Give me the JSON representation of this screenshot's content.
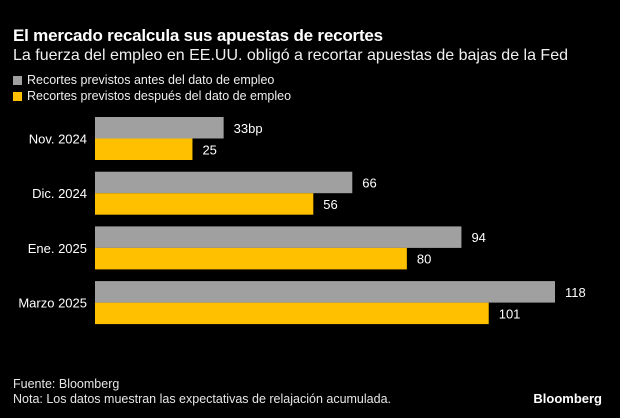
{
  "chart_data": {
    "type": "bar",
    "orientation": "horizontal",
    "title": "El mercado recalcula sus apuestas de recortes",
    "subtitle": "La fuerza del empleo en EE.UU. obligó a recortar apuestas de bajas de la Fed",
    "categories": [
      "Nov. 2024",
      "Dic. 2024",
      "Ene. 2025",
      "Marzo 2025"
    ],
    "series": [
      {
        "name": "Recortes previstos antes del dato de empleo",
        "color": "#a0a0a0",
        "values": [
          33,
          66,
          94,
          118
        ],
        "labels": [
          "33bp",
          "66",
          "94",
          "118"
        ]
      },
      {
        "name": "Recortes previstos después del dato de empleo",
        "color": "#ffc000",
        "values": [
          25,
          56,
          80,
          101
        ],
        "labels": [
          "25",
          "56",
          "80",
          "101"
        ]
      }
    ],
    "xlabel": "",
    "ylabel": "",
    "xlim": [
      0,
      118
    ],
    "unit": "bp",
    "grid": false,
    "legend_position": "top-left"
  },
  "footer": {
    "source": "Fuente: Bloomberg",
    "note": "Nota: Los datos muestran las expectativas de relajación acumulada.",
    "brand": "Bloomberg"
  }
}
